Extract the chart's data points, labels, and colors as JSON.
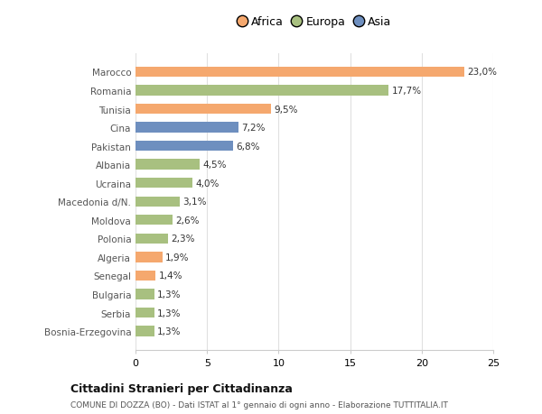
{
  "categories": [
    "Bosnia-Erzegovina",
    "Serbia",
    "Bulgaria",
    "Senegal",
    "Algeria",
    "Polonia",
    "Moldova",
    "Macedonia d/N.",
    "Ucraina",
    "Albania",
    "Pakistan",
    "Cina",
    "Tunisia",
    "Romania",
    "Marocco"
  ],
  "values": [
    1.3,
    1.3,
    1.3,
    1.4,
    1.9,
    2.3,
    2.6,
    3.1,
    4.0,
    4.5,
    6.8,
    7.2,
    9.5,
    17.7,
    23.0
  ],
  "labels": [
    "1,3%",
    "1,3%",
    "1,3%",
    "1,4%",
    "1,9%",
    "2,3%",
    "2,6%",
    "3,1%",
    "4,0%",
    "4,5%",
    "6,8%",
    "7,2%",
    "9,5%",
    "17,7%",
    "23,0%"
  ],
  "colors": [
    "#a8c080",
    "#a8c080",
    "#a8c080",
    "#f5a86e",
    "#f5a86e",
    "#a8c080",
    "#a8c080",
    "#a8c080",
    "#a8c080",
    "#a8c080",
    "#6e8fbf",
    "#6e8fbf",
    "#f5a86e",
    "#a8c080",
    "#f5a86e"
  ],
  "legend": [
    {
      "label": "Africa",
      "color": "#f5a86e"
    },
    {
      "label": "Europa",
      "color": "#a8c080"
    },
    {
      "label": "Asia",
      "color": "#6e8fbf"
    }
  ],
  "xlim": [
    0,
    25
  ],
  "xticks": [
    0,
    5,
    10,
    15,
    20,
    25
  ],
  "title_bold": "Cittadini Stranieri per Cittadinanza",
  "subtitle": "COMUNE DI DOZZA (BO) - Dati ISTAT al 1° gennaio di ogni anno - Elaborazione TUTTITALIA.IT",
  "background_color": "#ffffff",
  "bar_height": 0.55
}
